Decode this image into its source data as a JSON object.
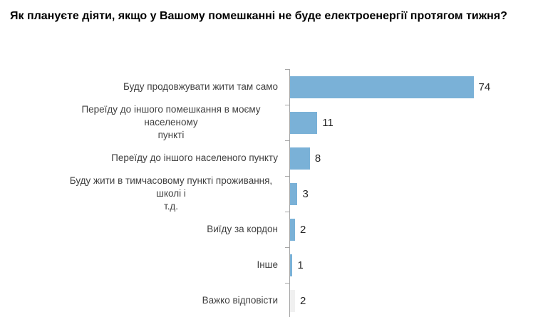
{
  "title": "Як плануєте діяти, якщо у Вашому помешканні не буде електроенергії протягом тижня?",
  "chart_data": {
    "type": "bar",
    "orientation": "horizontal",
    "title": "Як плануєте діяти, якщо у Вашому помешканні не буде електроенергії протягом тижня?",
    "categories": [
      "Буду продовжувати жити там само",
      "Переїду до іншого помешкання в моєму населеному\nпункті",
      "Переїду до іншого населеного пункту",
      "Буду жити в тимчасовому пункті проживання, школі і\nт.д.",
      "Виїду за кордон",
      "Інше",
      "Важко відповісти"
    ],
    "values": [
      74,
      11,
      8,
      3,
      2,
      1,
      2
    ],
    "value_labels": [
      "74",
      "11",
      "8",
      "3",
      "2",
      "1",
      "2"
    ],
    "bar_colors": [
      "#7AB1D7",
      "#7AB1D7",
      "#7AB1D7",
      "#7AB1D7",
      "#7AB1D7",
      "#7AB1D7",
      "#F0F0F0"
    ],
    "xlabel": "",
    "ylabel": "",
    "xlim": [
      0,
      100
    ],
    "grid": false,
    "legend": false,
    "axis_color": "#A6A6A6",
    "label_color": "#404040",
    "value_label_color": "#262626"
  }
}
